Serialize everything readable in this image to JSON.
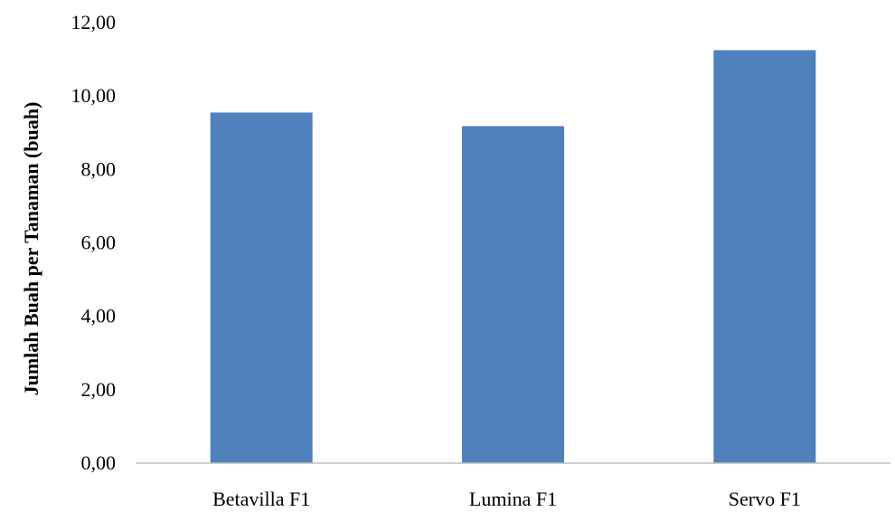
{
  "chart_data": {
    "type": "bar",
    "categories": [
      "Betavilla F1",
      "Lumina F1",
      "Servo F1"
    ],
    "values": [
      9.55,
      9.18,
      11.25
    ],
    "ylabel": "Jumlah Buah per Tanaman (buah)",
    "xlabel": "",
    "ylim": [
      0,
      12
    ],
    "yticks": [
      "0,00",
      "2,00",
      "4,00",
      "6,00",
      "8,00",
      "10,00",
      "12,00"
    ],
    "grid": false,
    "legend": "none",
    "bar_color": "#4f81bd",
    "axis_color": "#bfbfbf"
  }
}
